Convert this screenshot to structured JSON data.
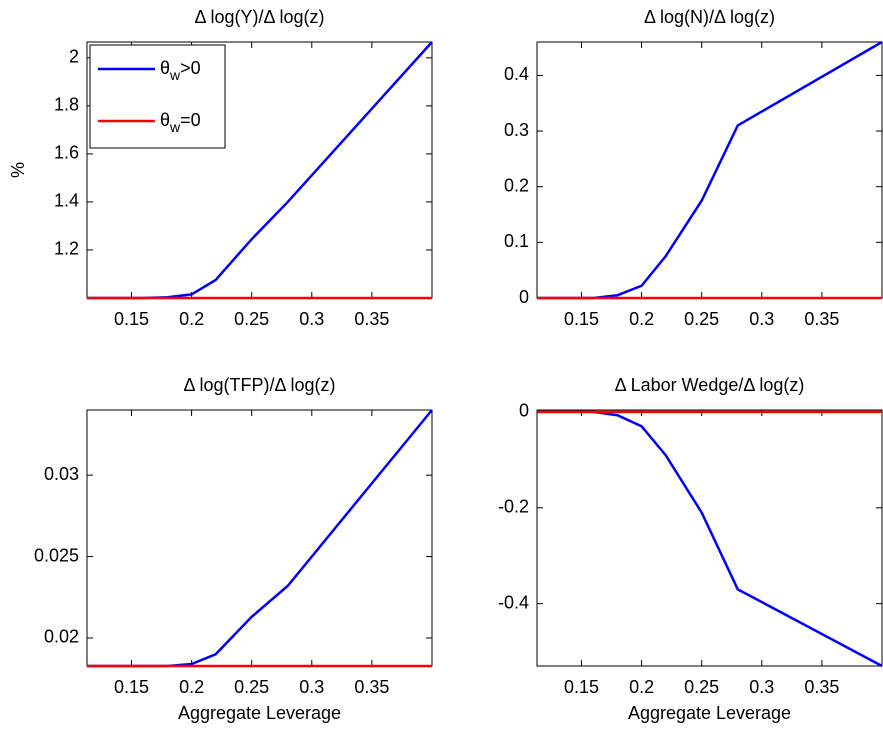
{
  "chart_data": [
    {
      "type": "line",
      "title": "Δ log(Y)/Δ log(z)",
      "ylabel": "%",
      "x": [
        0.113,
        0.16,
        0.18,
        0.2,
        0.22,
        0.25,
        0.28,
        0.4
      ],
      "series": [
        {
          "name": "θw>0",
          "color": "#0000ff",
          "values": [
            1.0,
            1.0,
            1.003,
            1.015,
            1.075,
            1.245,
            1.4,
            2.066
          ]
        },
        {
          "name": "θw=0",
          "color": "#ff0000",
          "values": [
            1.0,
            1.0,
            1.0,
            1.0,
            1.0,
            1.0,
            1.0,
            1.0
          ]
        }
      ],
      "xlim": [
        0.113,
        0.4
      ],
      "xticks": [
        0.15,
        0.2,
        0.25,
        0.3,
        0.35
      ],
      "ylim": [
        1.0,
        2.066
      ],
      "yticks": [
        1.2,
        1.4,
        1.6,
        1.8,
        2
      ],
      "legend": "northwest"
    },
    {
      "type": "line",
      "title": "Δ log(N)/Δ log(z)",
      "x": [
        0.113,
        0.16,
        0.18,
        0.2,
        0.22,
        0.25,
        0.28,
        0.4
      ],
      "series": [
        {
          "color": "#0000ff",
          "values": [
            0,
            0,
            0.005,
            0.022,
            0.075,
            0.175,
            0.31,
            0.46
          ]
        },
        {
          "color": "#ff0000",
          "values": [
            0,
            0,
            0,
            0,
            0,
            0,
            0,
            0
          ]
        }
      ],
      "xlim": [
        0.113,
        0.4
      ],
      "xticks": [
        0.15,
        0.2,
        0.25,
        0.3,
        0.35
      ],
      "ylim": [
        0,
        0.46
      ],
      "yticks": [
        0,
        0.1,
        0.2,
        0.3,
        0.4
      ]
    },
    {
      "type": "line",
      "title": "Δ log(TFP)/Δ log(z)",
      "xlabel": "Aggregate Leverage",
      "x": [
        0.113,
        0.16,
        0.18,
        0.2,
        0.22,
        0.25,
        0.28,
        0.4
      ],
      "series": [
        {
          "color": "#0000ff",
          "values": [
            0.01828,
            0.01828,
            0.01828,
            0.0184,
            0.019,
            0.0213,
            0.0232,
            0.034
          ]
        },
        {
          "color": "#ff0000",
          "values": [
            0.01828,
            0.01828,
            0.01828,
            0.01828,
            0.01828,
            0.01828,
            0.01828,
            0.01828
          ]
        }
      ],
      "xlim": [
        0.113,
        0.4
      ],
      "xticks": [
        0.15,
        0.2,
        0.25,
        0.3,
        0.35
      ],
      "ylim": [
        0.01828,
        0.034
      ],
      "yticks": [
        0.02,
        0.025,
        0.03
      ]
    },
    {
      "type": "line",
      "title": "Δ Labor Wedge/Δ log(z)",
      "xlabel": "Aggregate Leverage",
      "x": [
        0.113,
        0.16,
        0.18,
        0.2,
        0.22,
        0.25,
        0.28,
        0.4
      ],
      "series": [
        {
          "color": "#0000ff",
          "values": [
            0,
            0,
            -0.007,
            -0.03,
            -0.09,
            -0.21,
            -0.37,
            -0.53
          ]
        },
        {
          "color": "#ff0000",
          "values": [
            0,
            0,
            0,
            0,
            0,
            0,
            0,
            0
          ]
        }
      ],
      "xlim": [
        0.113,
        0.4
      ],
      "xticks": [
        0.15,
        0.2,
        0.25,
        0.3,
        0.35
      ],
      "ylim": [
        -0.53,
        0.004
      ],
      "yticks": [
        -0.4,
        -0.2,
        0
      ]
    }
  ]
}
